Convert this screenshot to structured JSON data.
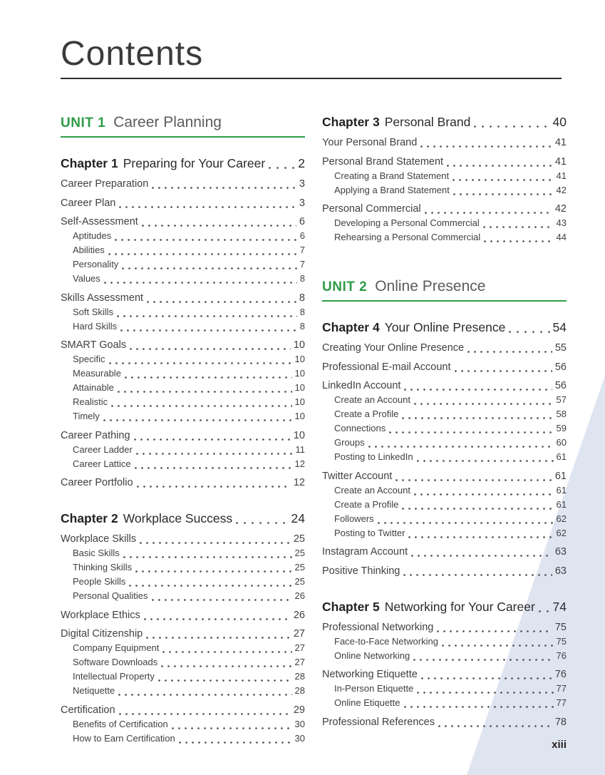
{
  "document": {
    "title": "Contents",
    "folio": "xiii"
  },
  "colors": {
    "accent_green": "#2f9c47",
    "text_dark": "#231f20",
    "text_body": "#414042",
    "unit_title_gray": "#5a5b5e",
    "wedge_blue": "#dfe4f1"
  },
  "toc": {
    "left_column": [
      {
        "type": "unit",
        "label": "UNIT 1",
        "title": "Career Planning"
      },
      {
        "type": "chapter",
        "label": "Chapter 1",
        "title": "Preparing for Your Career",
        "page": "2"
      },
      {
        "type": "l1",
        "title": "Career Preparation",
        "page": "3"
      },
      {
        "type": "l1",
        "title": "Career Plan",
        "page": "3"
      },
      {
        "type": "l1",
        "title": "Self-Assessment",
        "page": "6"
      },
      {
        "type": "l2",
        "title": "Aptitudes",
        "page": "6"
      },
      {
        "type": "l2",
        "title": "Abilities",
        "page": "7"
      },
      {
        "type": "l2",
        "title": "Personality",
        "page": "7"
      },
      {
        "type": "l2",
        "title": "Values",
        "page": "8"
      },
      {
        "type": "l1",
        "title": "Skills Assessment",
        "page": "8"
      },
      {
        "type": "l2",
        "title": "Soft Skills",
        "page": "8"
      },
      {
        "type": "l2",
        "title": "Hard Skills",
        "page": "8"
      },
      {
        "type": "l1",
        "title": "SMART Goals",
        "page": "10"
      },
      {
        "type": "l2",
        "title": "Specific",
        "page": "10"
      },
      {
        "type": "l2",
        "title": "Measurable",
        "page": "10"
      },
      {
        "type": "l2",
        "title": "Attainable",
        "page": "10"
      },
      {
        "type": "l2",
        "title": "Realistic",
        "page": "10"
      },
      {
        "type": "l2",
        "title": "Timely",
        "page": "10"
      },
      {
        "type": "l1",
        "title": "Career Pathing",
        "page": "10"
      },
      {
        "type": "l2",
        "title": "Career Ladder",
        "page": "11"
      },
      {
        "type": "l2",
        "title": "Career Lattice",
        "page": "12"
      },
      {
        "type": "l1",
        "title": "Career Portfolio",
        "page": "12"
      },
      {
        "type": "chapter",
        "label": "Chapter 2",
        "title": "Workplace Success",
        "page": "24"
      },
      {
        "type": "l1",
        "title": "Workplace Skills",
        "page": "25"
      },
      {
        "type": "l2",
        "title": "Basic Skills",
        "page": "25"
      },
      {
        "type": "l2",
        "title": "Thinking Skills",
        "page": "25"
      },
      {
        "type": "l2",
        "title": "People Skills",
        "page": "25"
      },
      {
        "type": "l2",
        "title": "Personal Qualities",
        "page": "26"
      },
      {
        "type": "l1",
        "title": "Workplace Ethics",
        "page": "26"
      },
      {
        "type": "l1",
        "title": "Digital Citizenship",
        "page": "27"
      },
      {
        "type": "l2",
        "title": "Company Equipment",
        "page": "27"
      },
      {
        "type": "l2",
        "title": "Software Downloads",
        "page": "27"
      },
      {
        "type": "l2",
        "title": "Intellectual Property",
        "page": "28"
      },
      {
        "type": "l2",
        "title": "Netiquette",
        "page": "28"
      },
      {
        "type": "l1",
        "title": "Certification",
        "page": "29"
      },
      {
        "type": "l2",
        "title": "Benefits of Certification",
        "page": "30"
      },
      {
        "type": "l2",
        "title": "How to Earn Certification",
        "page": "30"
      }
    ],
    "right_column": [
      {
        "type": "chapter",
        "label": "Chapter 3",
        "title": "Personal Brand",
        "page": "40"
      },
      {
        "type": "l1",
        "title": "Your Personal Brand",
        "page": "41"
      },
      {
        "type": "l1",
        "title": "Personal Brand Statement",
        "page": "41"
      },
      {
        "type": "l2",
        "title": "Creating a Brand Statement",
        "page": "41"
      },
      {
        "type": "l2",
        "title": "Applying a Brand Statement",
        "page": "42"
      },
      {
        "type": "l1",
        "title": "Personal Commercial",
        "page": "42"
      },
      {
        "type": "l2",
        "title": "Developing a Personal Commercial",
        "page": "43"
      },
      {
        "type": "l2",
        "title": "Rehearsing a Personal Commercial",
        "page": "44"
      },
      {
        "type": "unit",
        "label": "UNIT 2",
        "title": "Online Presence"
      },
      {
        "type": "chapter",
        "label": "Chapter 4",
        "title": "Your Online Presence",
        "page": "54"
      },
      {
        "type": "l1",
        "title": "Creating Your Online Presence",
        "page": "55"
      },
      {
        "type": "l1",
        "title": "Professional E-mail Account",
        "page": "56"
      },
      {
        "type": "l1",
        "title": "LinkedIn Account",
        "page": "56"
      },
      {
        "type": "l2",
        "title": "Create an Account",
        "page": "57"
      },
      {
        "type": "l2",
        "title": "Create a Profile",
        "page": "58"
      },
      {
        "type": "l2",
        "title": "Connections",
        "page": "59"
      },
      {
        "type": "l2",
        "title": "Groups",
        "page": "60"
      },
      {
        "type": "l2",
        "title": "Posting to LinkedIn",
        "page": "61"
      },
      {
        "type": "l1",
        "title": "Twitter Account",
        "page": "61"
      },
      {
        "type": "l2",
        "title": "Create an Account",
        "page": "61"
      },
      {
        "type": "l2",
        "title": "Create a Profile",
        "page": "61"
      },
      {
        "type": "l2",
        "title": "Followers",
        "page": "62"
      },
      {
        "type": "l2",
        "title": "Posting to Twitter",
        "page": "62"
      },
      {
        "type": "l1",
        "title": "Instagram Account",
        "page": "63"
      },
      {
        "type": "l1",
        "title": "Positive Thinking",
        "page": "63"
      },
      {
        "type": "chapter",
        "label": "Chapter 5",
        "title": "Networking for Your Career",
        "page": "74"
      },
      {
        "type": "l1",
        "title": "Professional Networking",
        "page": "75"
      },
      {
        "type": "l2",
        "title": "Face-to-Face Networking",
        "page": "75"
      },
      {
        "type": "l2",
        "title": "Online Networking",
        "page": "76"
      },
      {
        "type": "l1",
        "title": "Networking Etiquette",
        "page": "76"
      },
      {
        "type": "l2",
        "title": "In-Person Etiquette",
        "page": "77"
      },
      {
        "type": "l2",
        "title": "Online Etiquette",
        "page": "77"
      },
      {
        "type": "l1",
        "title": "Professional References",
        "page": "78"
      }
    ]
  }
}
